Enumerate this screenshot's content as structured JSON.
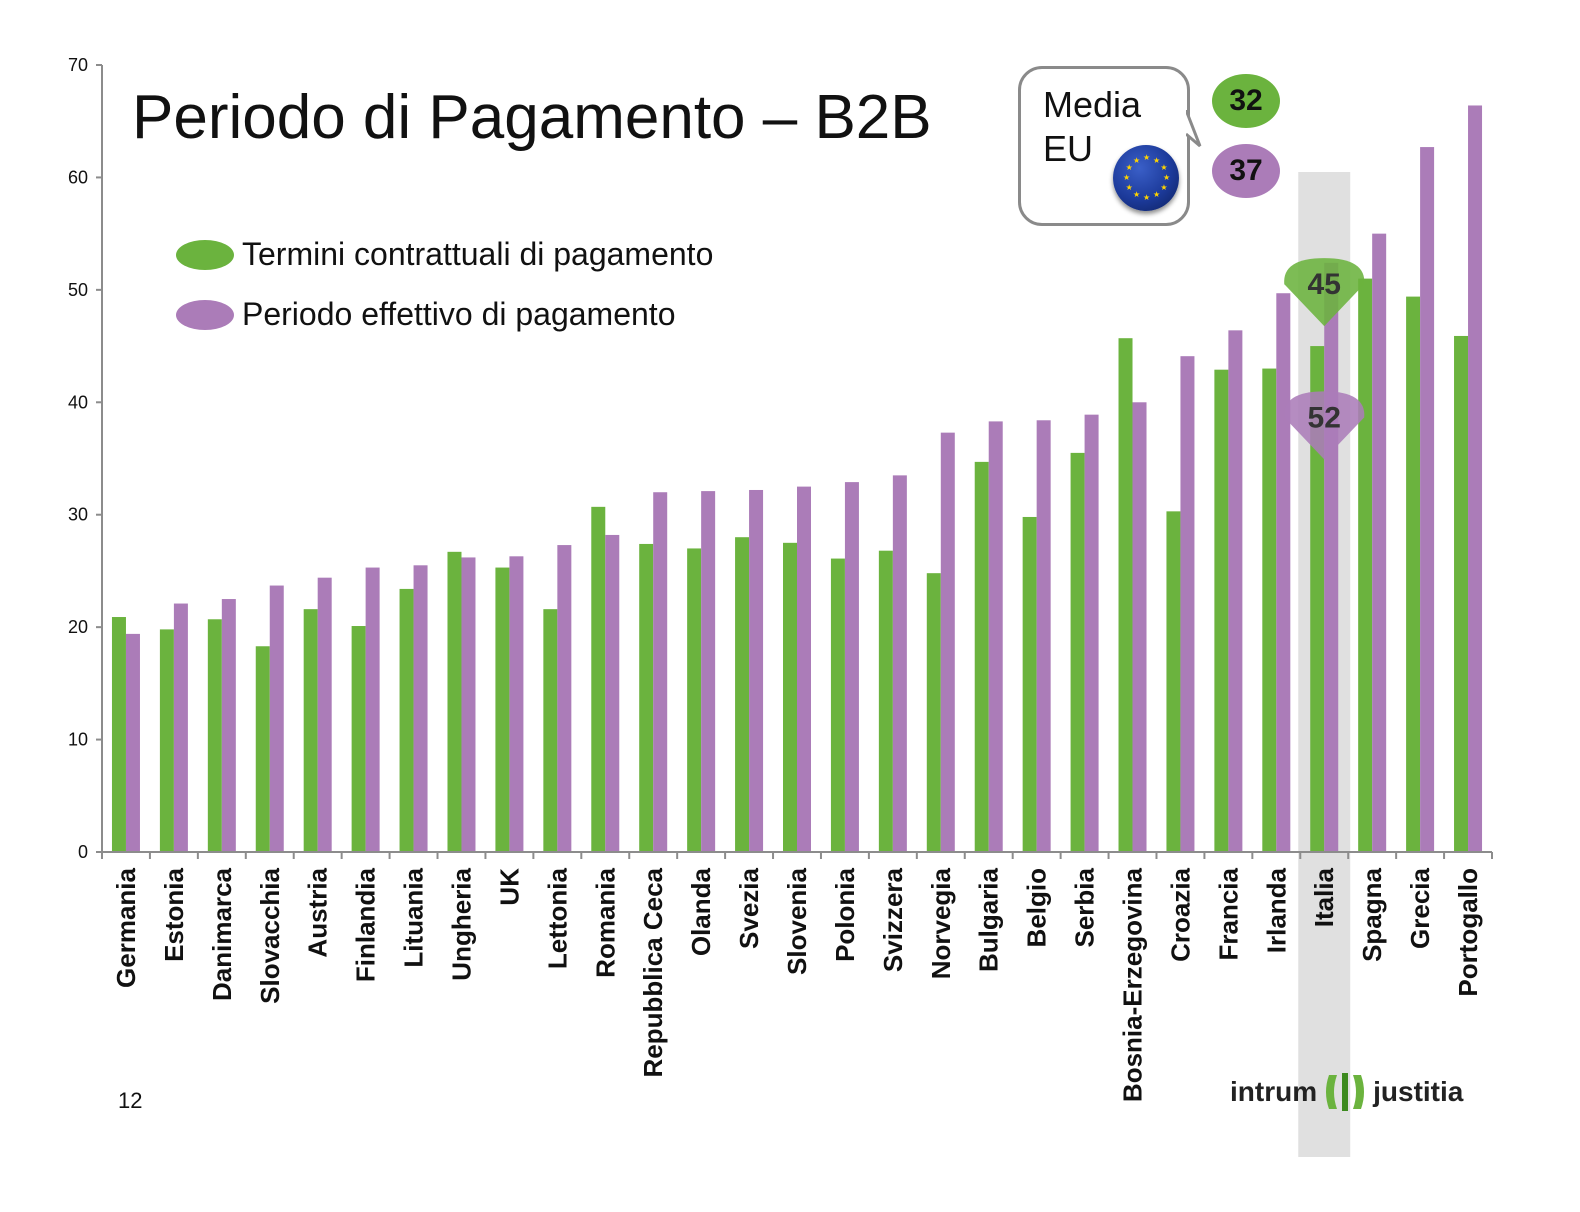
{
  "page": {
    "title": "Periodo di Pagamento – B2B",
    "page_number": "12"
  },
  "legend": [
    {
      "label": "Termini contrattuali di pagamento",
      "color": "#6bb33e"
    },
    {
      "label": "Periodo effettivo di pagamento",
      "color": "#ab7cb8"
    }
  ],
  "eu_average": {
    "label": "Media EU",
    "contractual": "32",
    "actual": "37"
  },
  "highlight": {
    "country": "Italia",
    "actual_label": "52",
    "contractual_label": "45"
  },
  "logo": {
    "left_text": "intrum",
    "right_text": "justitia"
  },
  "colors": {
    "green": "#6bb33e",
    "purple": "#ab7cb8",
    "axis": "#8c8c8c",
    "highlight": "#d6d6d6"
  },
  "chart_data": {
    "type": "bar",
    "categories": [
      "Germania",
      "Estonia",
      "Danimarca",
      "Slovacchia",
      "Austria",
      "Finlandia",
      "Lituania",
      "Ungheria",
      "UK",
      "Lettonia",
      "Romania",
      "Repubblica Ceca",
      "Olanda",
      "Svezia",
      "Slovenia",
      "Polonia",
      "Svizzera",
      "Norvegia",
      "Bulgaria",
      "Belgio",
      "Serbia",
      "Bosnia-Erzegovina",
      "Croazia",
      "Francia",
      "Irlanda",
      "Italia",
      "Spagna",
      "Grecia",
      "Portogallo"
    ],
    "series": [
      {
        "name": "Termini contrattuali di pagamento",
        "values": [
          20.9,
          19.8,
          20.7,
          18.3,
          21.6,
          20.1,
          23.4,
          26.7,
          25.3,
          21.6,
          30.7,
          27.4,
          27.0,
          28.0,
          27.5,
          26.1,
          26.8,
          24.8,
          34.7,
          29.8,
          35.5,
          45.7,
          30.3,
          42.9,
          43.0,
          45.0,
          51.0,
          49.4,
          45.9
        ]
      },
      {
        "name": "Periodo effettivo di pagamento",
        "values": [
          19.4,
          22.1,
          22.5,
          23.7,
          24.4,
          25.3,
          25.5,
          26.2,
          26.3,
          27.3,
          28.2,
          32.0,
          32.1,
          32.2,
          32.5,
          32.9,
          33.5,
          37.3,
          38.3,
          38.4,
          38.9,
          40.0,
          44.1,
          46.4,
          49.7,
          52.4,
          55.0,
          62.7,
          66.4
        ]
      }
    ],
    "y_ticks": [
      "0",
      "10",
      "20",
      "30",
      "40",
      "50",
      "60",
      "70"
    ],
    "ylim": [
      0,
      70
    ],
    "grid": false,
    "legend_position": "top-left"
  }
}
